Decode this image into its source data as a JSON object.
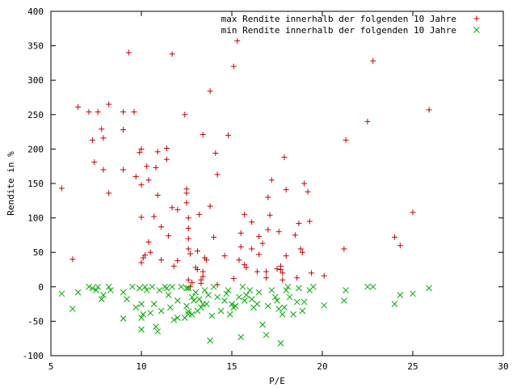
{
  "chart_data": {
    "type": "scatter",
    "title": "",
    "xlabel": "P/E",
    "ylabel": "Rendite in %",
    "xlim": [
      5,
      30
    ],
    "ylim": [
      -100,
      400
    ],
    "xticks": [
      5,
      10,
      15,
      20,
      25,
      30
    ],
    "yticks": [
      -100,
      -50,
      0,
      50,
      100,
      150,
      200,
      250,
      300,
      350,
      400
    ],
    "grid": false,
    "legend_position": "top-right",
    "series": [
      {
        "name": "max Rendite innerhalb der folgenden 10 Jahre",
        "marker": "plus",
        "color": "#cc0000",
        "points": [
          [
            5.6,
            143
          ],
          [
            6.2,
            40
          ],
          [
            6.5,
            261
          ],
          [
            7.1,
            254
          ],
          [
            7.3,
            213
          ],
          [
            7.4,
            181
          ],
          [
            7.6,
            254
          ],
          [
            7.8,
            229
          ],
          [
            7.9,
            216
          ],
          [
            7.9,
            170
          ],
          [
            8.2,
            136
          ],
          [
            8.2,
            265
          ],
          [
            9.0,
            254
          ],
          [
            9.0,
            228
          ],
          [
            9.0,
            170
          ],
          [
            9.3,
            340
          ],
          [
            9.6,
            254
          ],
          [
            9.7,
            160
          ],
          [
            9.9,
            195
          ],
          [
            10.0,
            200
          ],
          [
            10.0,
            148
          ],
          [
            10.0,
            101
          ],
          [
            10.0,
            35
          ],
          [
            10.1,
            42
          ],
          [
            10.2,
            46
          ],
          [
            10.3,
            175
          ],
          [
            10.4,
            155
          ],
          [
            10.4,
            65
          ],
          [
            10.5,
            50
          ],
          [
            10.7,
            102
          ],
          [
            10.8,
            173
          ],
          [
            10.9,
            133
          ],
          [
            10.9,
            196
          ],
          [
            11.1,
            87
          ],
          [
            11.1,
            39
          ],
          [
            11.4,
            201
          ],
          [
            11.4,
            185
          ],
          [
            11.5,
            74
          ],
          [
            11.7,
            338
          ],
          [
            11.7,
            115
          ],
          [
            11.8,
            30
          ],
          [
            12.0,
            38
          ],
          [
            12.0,
            112
          ],
          [
            12.4,
            250
          ],
          [
            12.5,
            142
          ],
          [
            12.5,
            136
          ],
          [
            12.5,
            122
          ],
          [
            12.6,
            100
          ],
          [
            12.6,
            85
          ],
          [
            12.6,
            70
          ],
          [
            12.6,
            55
          ],
          [
            12.7,
            48
          ],
          [
            12.6,
            10
          ],
          [
            12.7,
            0
          ],
          [
            12.8,
            6
          ],
          [
            13.0,
            28
          ],
          [
            13.1,
            52
          ],
          [
            13.1,
            25
          ],
          [
            13.2,
            105
          ],
          [
            13.3,
            10
          ],
          [
            13.3,
            5
          ],
          [
            13.4,
            221
          ],
          [
            13.4,
            15
          ],
          [
            13.4,
            22
          ],
          [
            13.5,
            42
          ],
          [
            13.6,
            39
          ],
          [
            13.8,
            284
          ],
          [
            13.8,
            117
          ],
          [
            14.0,
            72
          ],
          [
            14.1,
            194
          ],
          [
            14.2,
            163
          ],
          [
            14.2,
            3
          ],
          [
            14.6,
            45
          ],
          [
            14.8,
            220
          ],
          [
            15.1,
            320
          ],
          [
            15.1,
            12
          ],
          [
            15.3,
            357
          ],
          [
            15.4,
            39
          ],
          [
            15.5,
            78
          ],
          [
            15.5,
            58
          ],
          [
            15.7,
            105
          ],
          [
            15.7,
            32
          ],
          [
            15.8,
            28
          ],
          [
            16.1,
            94
          ],
          [
            16.1,
            55
          ],
          [
            16.4,
            22
          ],
          [
            16.5,
            73
          ],
          [
            16.5,
            47
          ],
          [
            16.7,
            63
          ],
          [
            16.9,
            13
          ],
          [
            16.9,
            22
          ],
          [
            17.0,
            130
          ],
          [
            17.0,
            83
          ],
          [
            17.1,
            104
          ],
          [
            17.2,
            155
          ],
          [
            17.5,
            26
          ],
          [
            17.6,
            80
          ],
          [
            17.7,
            25
          ],
          [
            17.7,
            30
          ],
          [
            17.8,
            20
          ],
          [
            17.8,
            10
          ],
          [
            17.9,
            188
          ],
          [
            18.0,
            141
          ],
          [
            18.0,
            45
          ],
          [
            18.5,
            75
          ],
          [
            18.6,
            13
          ],
          [
            18.7,
            92
          ],
          [
            18.8,
            55
          ],
          [
            18.9,
            50
          ],
          [
            19.0,
            150
          ],
          [
            19.2,
            138
          ],
          [
            19.3,
            95
          ],
          [
            19.4,
            20
          ],
          [
            20.1,
            16
          ],
          [
            21.2,
            55
          ],
          [
            21.3,
            213
          ],
          [
            22.5,
            240
          ],
          [
            22.8,
            328
          ],
          [
            24.0,
            72
          ],
          [
            24.3,
            60
          ],
          [
            25.0,
            108
          ],
          [
            25.9,
            257
          ]
        ]
      },
      {
        "name": "min Rendite innerhalb der folgenden 10 Jahre",
        "marker": "cross",
        "color": "#00aa00",
        "points": [
          [
            5.6,
            -10
          ],
          [
            6.2,
            -32
          ],
          [
            6.5,
            -8
          ],
          [
            7.1,
            0
          ],
          [
            7.3,
            -2
          ],
          [
            7.5,
            -5
          ],
          [
            7.6,
            0
          ],
          [
            7.8,
            -18
          ],
          [
            7.9,
            -12
          ],
          [
            8.2,
            0
          ],
          [
            8.3,
            -5
          ],
          [
            9.0,
            -8
          ],
          [
            9.0,
            -46
          ],
          [
            9.2,
            -18
          ],
          [
            9.5,
            0
          ],
          [
            9.7,
            -30
          ],
          [
            9.9,
            -2
          ],
          [
            10.0,
            -25
          ],
          [
            10.0,
            -45
          ],
          [
            10.0,
            -62
          ],
          [
            10.1,
            -40
          ],
          [
            10.2,
            0
          ],
          [
            10.3,
            -5
          ],
          [
            10.5,
            -38
          ],
          [
            10.6,
            0
          ],
          [
            10.7,
            -25
          ],
          [
            10.8,
            -58
          ],
          [
            10.9,
            -65
          ],
          [
            11.0,
            -5
          ],
          [
            11.1,
            -35
          ],
          [
            11.3,
            0
          ],
          [
            11.4,
            -2
          ],
          [
            11.5,
            -12
          ],
          [
            11.6,
            -30
          ],
          [
            11.7,
            0
          ],
          [
            11.8,
            -48
          ],
          [
            12.0,
            -45
          ],
          [
            12.0,
            -20
          ],
          [
            12.2,
            0
          ],
          [
            12.4,
            -45
          ],
          [
            12.5,
            -2
          ],
          [
            12.5,
            -28
          ],
          [
            12.6,
            -36
          ],
          [
            12.6,
            -40
          ],
          [
            12.6,
            -2
          ],
          [
            12.8,
            -40
          ],
          [
            12.8,
            -15
          ],
          [
            12.9,
            -20
          ],
          [
            13.0,
            -8
          ],
          [
            13.1,
            -35
          ],
          [
            13.2,
            -18
          ],
          [
            13.3,
            -30
          ],
          [
            13.4,
            -25
          ],
          [
            13.5,
            -5
          ],
          [
            13.6,
            -25
          ],
          [
            13.7,
            -12
          ],
          [
            13.8,
            -78
          ],
          [
            13.9,
            -42
          ],
          [
            14.0,
            0
          ],
          [
            14.2,
            -15
          ],
          [
            14.4,
            -35
          ],
          [
            14.6,
            -20
          ],
          [
            14.7,
            -10
          ],
          [
            14.8,
            -5
          ],
          [
            14.9,
            -40
          ],
          [
            15.0,
            -25
          ],
          [
            15.1,
            -30
          ],
          [
            15.2,
            -28
          ],
          [
            15.4,
            -15
          ],
          [
            15.5,
            -73
          ],
          [
            15.6,
            0
          ],
          [
            15.7,
            -20
          ],
          [
            15.8,
            -12
          ],
          [
            16.0,
            -5
          ],
          [
            16.1,
            -18
          ],
          [
            16.2,
            -30
          ],
          [
            16.4,
            -25
          ],
          [
            16.5,
            -8
          ],
          [
            16.7,
            -55
          ],
          [
            16.9,
            -70
          ],
          [
            17.0,
            -28
          ],
          [
            17.2,
            -5
          ],
          [
            17.4,
            -15
          ],
          [
            17.5,
            -20
          ],
          [
            17.6,
            -32
          ],
          [
            17.7,
            -82
          ],
          [
            17.8,
            -40
          ],
          [
            17.9,
            -30
          ],
          [
            18.0,
            -5
          ],
          [
            18.1,
            0
          ],
          [
            18.2,
            -15
          ],
          [
            18.4,
            -40
          ],
          [
            18.6,
            -22
          ],
          [
            18.7,
            -2
          ],
          [
            18.9,
            -35
          ],
          [
            19.0,
            -22
          ],
          [
            19.3,
            -5
          ],
          [
            19.5,
            0
          ],
          [
            20.1,
            -27
          ],
          [
            21.2,
            -20
          ],
          [
            21.3,
            -5
          ],
          [
            22.5,
            0
          ],
          [
            22.8,
            0
          ],
          [
            24.0,
            -25
          ],
          [
            24.3,
            -12
          ],
          [
            25.0,
            -10
          ],
          [
            25.9,
            -2
          ]
        ]
      }
    ]
  }
}
